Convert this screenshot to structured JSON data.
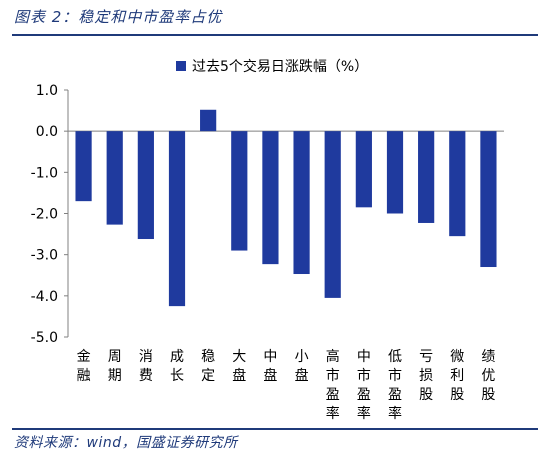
{
  "figure": {
    "title": "图表 2：稳定和中市盈率占优",
    "source": "资料来源：wind，国盛证券研究所"
  },
  "chart_data": {
    "type": "bar",
    "categories": [
      "金融",
      "周期",
      "消费",
      "成长",
      "稳定",
      "大盘",
      "中盘",
      "小盘",
      "高市盈率",
      "中市盈率",
      "低市盈率",
      "亏损股",
      "微利股",
      "绩优股"
    ],
    "series": [
      {
        "name": "过去5个交易日涨跌幅（%）",
        "values": [
          -1.7,
          -2.27,
          -2.62,
          -4.25,
          0.52,
          -2.9,
          -3.23,
          -3.47,
          -4.05,
          -1.85,
          -2.0,
          -2.23,
          -2.55,
          -3.3
        ],
        "color": "#1f3a9e"
      }
    ],
    "ylim": [
      -5.0,
      1.0
    ],
    "yticks": [
      "1.0",
      "0.0",
      "-1.0",
      "-2.0",
      "-3.0",
      "-4.0",
      "-5.0"
    ],
    "ytick_values": [
      1.0,
      0.0,
      -1.0,
      -2.0,
      -3.0,
      -4.0,
      -5.0
    ],
    "grid": false,
    "legend_position": "top"
  }
}
